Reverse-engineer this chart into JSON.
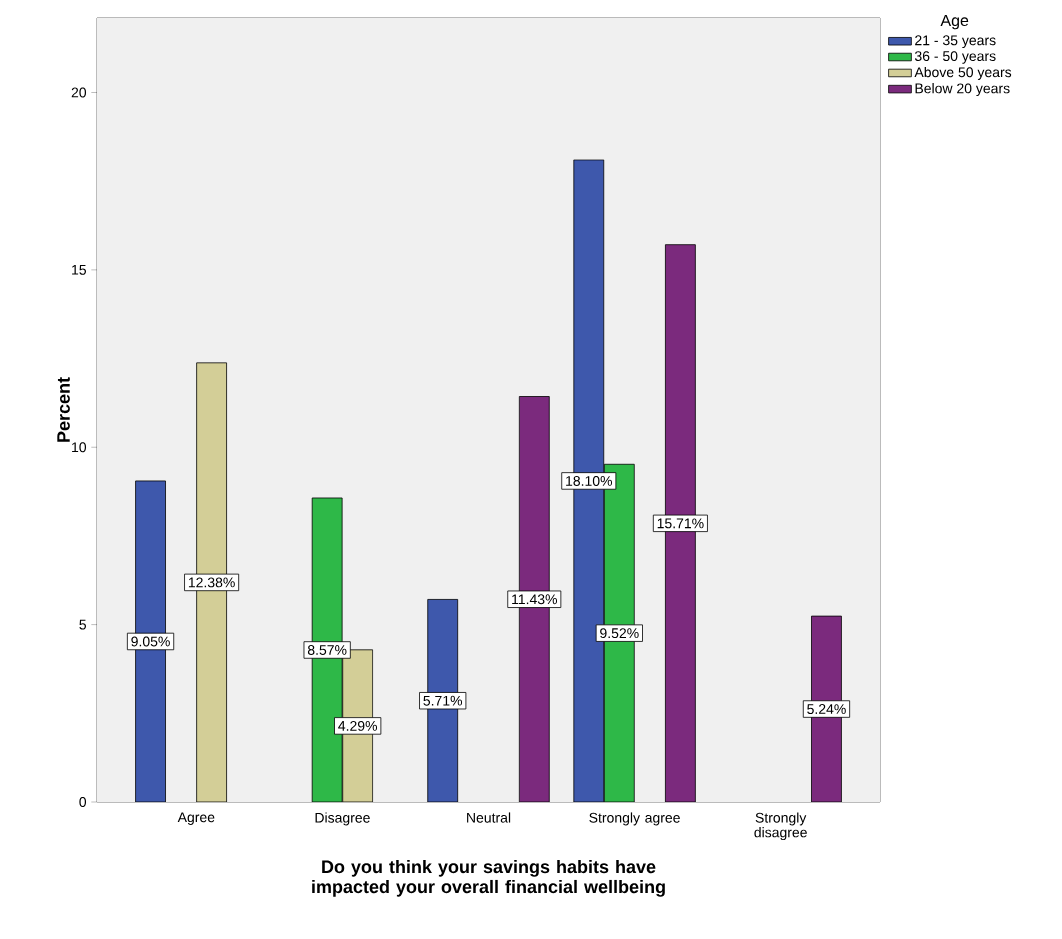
{
  "chart_data": {
    "type": "bar",
    "categories": [
      "Agree",
      "Disagree",
      "Neutral",
      "Strongly agree",
      "Strongly disagree"
    ],
    "series": [
      {
        "name": "21 - 35 years",
        "color": "#3e58ac",
        "values": [
          9.05,
          null,
          5.71,
          18.1,
          null
        ],
        "value_labels": [
          "9.05%",
          null,
          "5.71%",
          "18.10%",
          null
        ]
      },
      {
        "name": "36 - 50 years",
        "color": "#2eb848",
        "values": [
          null,
          8.57,
          null,
          9.52,
          null
        ],
        "value_labels": [
          null,
          "8.57%",
          null,
          "9.52%",
          null
        ]
      },
      {
        "name": "Above 50 years",
        "color": "#d3ce97",
        "values": [
          12.38,
          4.29,
          null,
          null,
          null
        ],
        "value_labels": [
          "12.38%",
          "4.29%",
          null,
          null,
          null
        ]
      },
      {
        "name": "Below 20 years",
        "color": "#7b2a7d",
        "values": [
          null,
          null,
          11.43,
          15.71,
          5.24
        ],
        "value_labels": [
          null,
          null,
          "11.43%",
          "15.71%",
          "5.24%"
        ]
      }
    ],
    "xlabel": "Do you think your savings habits have impacted your overall financial wellbeing",
    "ylabel": "Percent",
    "legend_title": "Age",
    "legend": "top right",
    "ylim": [
      0,
      22.1
    ],
    "yticks": [
      0,
      5,
      10,
      15,
      20
    ]
  }
}
